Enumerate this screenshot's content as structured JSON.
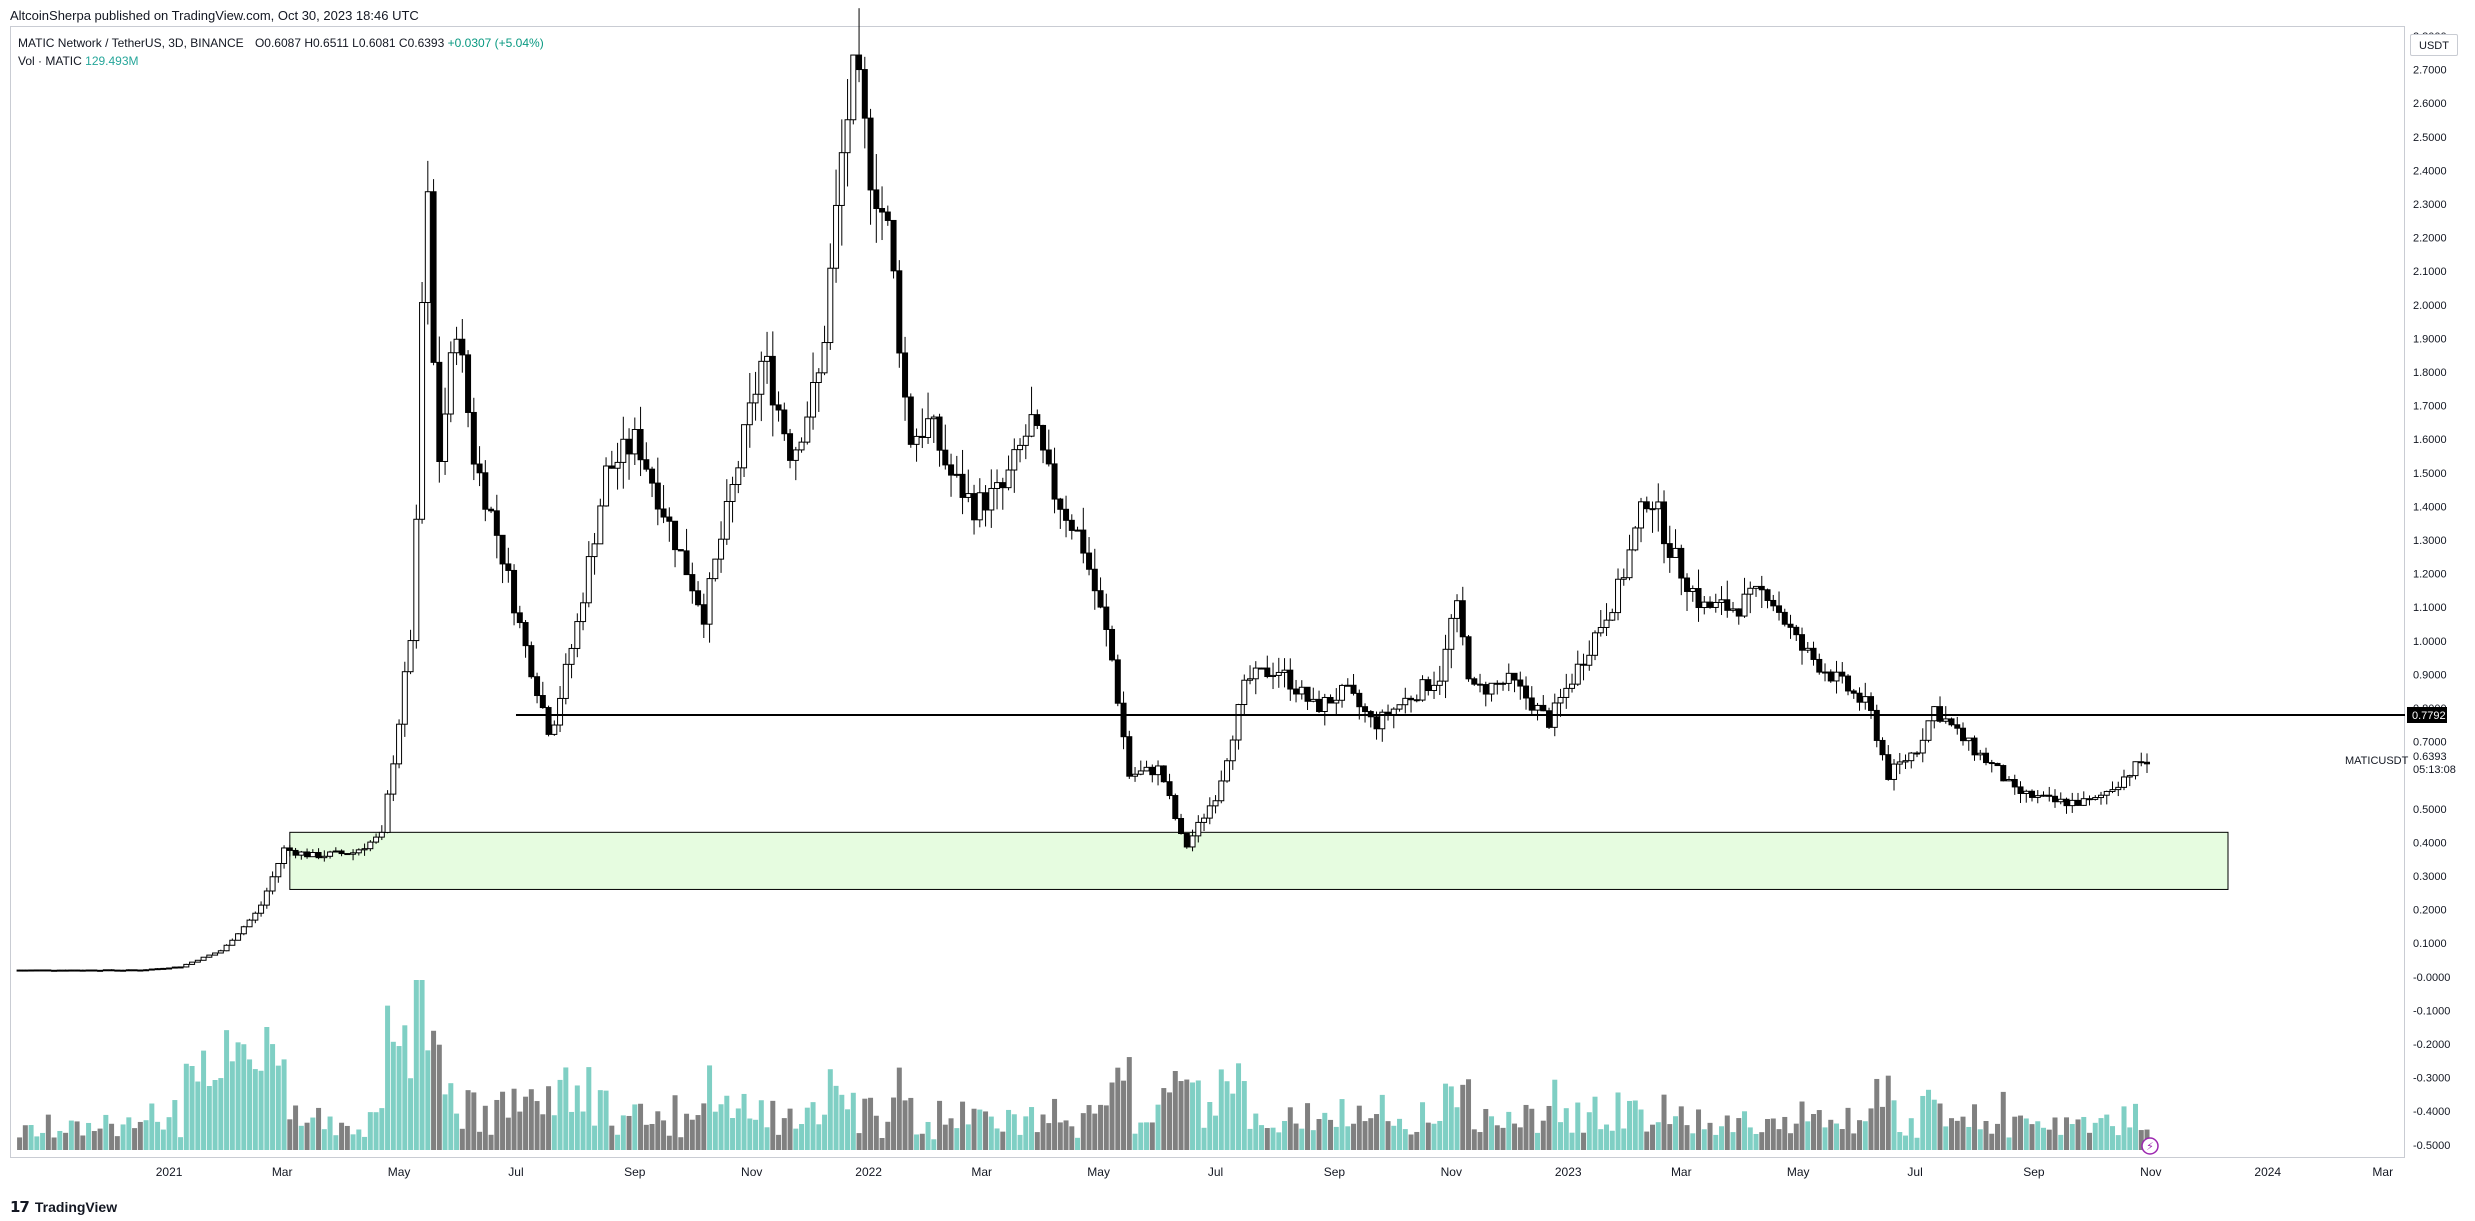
{
  "header": {
    "publisher": "AltcoinSherpa published on TradingView.com, Oct 30, 2023 18:46 UTC"
  },
  "legend": {
    "symbol": "MATIC Network / TetherUS, 3D, BINANCE",
    "open": "O0.6087",
    "high": "H0.6511",
    "low": "L0.6081",
    "close": "C0.6393",
    "change": "+0.0307 (+5.04%)",
    "volume_label": "Vol · MATIC",
    "volume_value": "129.493M"
  },
  "currency_button": "USDT",
  "footer": {
    "brand": "TradingView"
  },
  "colors": {
    "up_candle": "#ffffff",
    "down_candle": "#000000",
    "wick": "#000000",
    "volume_up": "#7fcfc4",
    "volume_down": "#808080",
    "zone_fill": "#e6fce0",
    "level_line": "#000000"
  },
  "chart_data": {
    "type": "candlestick",
    "symbol": "MATICUSDT",
    "timeframe": "3D",
    "exchange": "BINANCE",
    "price_axis": {
      "labels": [
        "2.8000",
        "2.7000",
        "2.6000",
        "2.5000",
        "2.4000",
        "2.3000",
        "2.2000",
        "2.1000",
        "2.0000",
        "1.9000",
        "1.8000",
        "1.7000",
        "1.6000",
        "1.5000",
        "1.4000",
        "1.3000",
        "1.2000",
        "1.1000",
        "1.0000",
        "0.9000",
        "0.8000",
        "0.7000",
        "0.5000",
        "0.4000",
        "0.3000",
        "0.2000",
        "0.1000",
        "-0.0000",
        "-0.1000",
        "-0.2000",
        "-0.3000",
        "-0.4000",
        "-0.5000"
      ],
      "ylim": [
        -0.55,
        2.85
      ]
    },
    "time_axis": {
      "labels": [
        "2021",
        "Mar",
        "May",
        "Jul",
        "Sep",
        "Nov",
        "2022",
        "Mar",
        "May",
        "Jul",
        "Sep",
        "Nov",
        "2023",
        "Mar",
        "May",
        "Jul",
        "Sep",
        "Nov",
        "2024",
        "Mar"
      ]
    },
    "horizontal_level": {
      "value": 0.7792,
      "label": "0.7792"
    },
    "support_zone": {
      "top": 0.43,
      "bottom": 0.26
    },
    "last_price": {
      "symbol_label": "MATICUSDT",
      "value": "0.6393",
      "countdown": "05:13:08"
    },
    "price_path": [
      [
        "2020-10-15",
        0.02
      ],
      [
        "2020-12-20",
        0.02
      ],
      [
        "2021-01-10",
        0.03
      ],
      [
        "2021-02-01",
        0.08
      ],
      [
        "2021-02-20",
        0.2
      ],
      [
        "2021-03-05",
        0.38
      ],
      [
        "2021-03-20",
        0.36
      ],
      [
        "2021-04-10",
        0.37
      ],
      [
        "2021-04-25",
        0.42
      ],
      [
        "2021-05-05",
        0.8
      ],
      [
        "2021-05-12",
        1.1
      ],
      [
        "2021-05-18",
        2.45
      ],
      [
        "2021-05-24",
        1.5
      ],
      [
        "2021-06-03",
        1.95
      ],
      [
        "2021-06-12",
        1.55
      ],
      [
        "2021-06-25",
        1.3
      ],
      [
        "2021-07-08",
        1.0
      ],
      [
        "2021-07-22",
        0.72
      ],
      [
        "2021-08-05",
        1.05
      ],
      [
        "2021-08-20",
        1.5
      ],
      [
        "2021-09-05",
        1.6
      ],
      [
        "2021-09-25",
        1.3
      ],
      [
        "2021-10-10",
        1.08
      ],
      [
        "2021-10-25",
        1.45
      ],
      [
        "2021-11-10",
        1.85
      ],
      [
        "2021-11-25",
        1.55
      ],
      [
        "2021-12-10",
        1.8
      ],
      [
        "2021-12-22",
        2.5
      ],
      [
        "2021-12-28",
        2.7
      ],
      [
        "2022-01-05",
        2.4
      ],
      [
        "2022-01-15",
        2.2
      ],
      [
        "2022-01-25",
        1.6
      ],
      [
        "2022-02-05",
        1.65
      ],
      [
        "2022-02-15",
        1.5
      ],
      [
        "2022-02-28",
        1.4
      ],
      [
        "2022-03-15",
        1.45
      ],
      [
        "2022-03-30",
        1.65
      ],
      [
        "2022-04-10",
        1.45
      ],
      [
        "2022-04-25",
        1.3
      ],
      [
        "2022-05-10",
        0.98
      ],
      [
        "2022-05-20",
        0.6
      ],
      [
        "2022-06-05",
        0.62
      ],
      [
        "2022-06-18",
        0.38
      ],
      [
        "2022-07-05",
        0.55
      ],
      [
        "2022-07-20",
        0.88
      ],
      [
        "2022-08-05",
        0.92
      ],
      [
        "2022-08-25",
        0.8
      ],
      [
        "2022-09-10",
        0.85
      ],
      [
        "2022-09-25",
        0.75
      ],
      [
        "2022-10-10",
        0.82
      ],
      [
        "2022-10-30",
        0.9
      ],
      [
        "2022-11-06",
        1.12
      ],
      [
        "2022-11-15",
        0.85
      ],
      [
        "2022-12-05",
        0.88
      ],
      [
        "2022-12-25",
        0.76
      ],
      [
        "2023-01-10",
        0.93
      ],
      [
        "2023-01-30",
        1.15
      ],
      [
        "2023-02-15",
        1.45
      ],
      [
        "2023-02-28",
        1.25
      ],
      [
        "2023-03-15",
        1.1
      ],
      [
        "2023-04-01",
        1.1
      ],
      [
        "2023-04-18",
        1.15
      ],
      [
        "2023-05-05",
        0.98
      ],
      [
        "2023-05-25",
        0.88
      ],
      [
        "2023-06-10",
        0.8
      ],
      [
        "2023-06-20",
        0.6
      ],
      [
        "2023-07-05",
        0.68
      ],
      [
        "2023-07-14",
        0.8
      ],
      [
        "2023-07-30",
        0.7
      ],
      [
        "2023-08-15",
        0.62
      ],
      [
        "2023-08-25",
        0.55
      ],
      [
        "2023-09-15",
        0.52
      ],
      [
        "2023-10-05",
        0.52
      ],
      [
        "2023-10-18",
        0.58
      ],
      [
        "2023-10-30",
        0.6393
      ]
    ]
  }
}
